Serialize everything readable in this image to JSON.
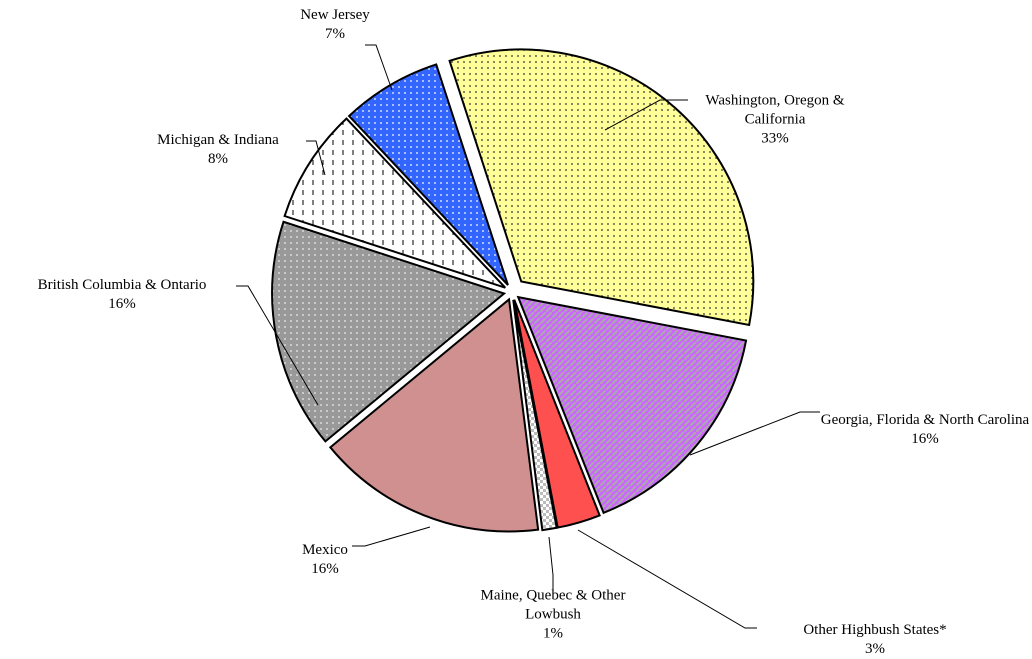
{
  "chart_data": {
    "type": "pie",
    "categories": [
      "Washington, Oregon & California",
      "Georgia, Florida & North Carolina",
      "Other Highbush States*",
      "Maine, Quebec & Other Lowbush",
      "Mexico",
      "British Columbia & Ontario",
      "Michigan & Indiana",
      "New Jersey"
    ],
    "values": [
      33,
      16,
      3,
      1,
      16,
      16,
      8,
      7
    ],
    "value_labels": [
      "33%",
      "16%",
      "3%",
      "1%",
      "16%",
      "16%",
      "8%",
      "7%"
    ],
    "colors": [
      "#ffff99",
      "#cc66ff",
      "#ff5050",
      "#ffffff",
      "#d09090",
      "#999999",
      "#ffffff",
      "#3366ff"
    ]
  }
}
